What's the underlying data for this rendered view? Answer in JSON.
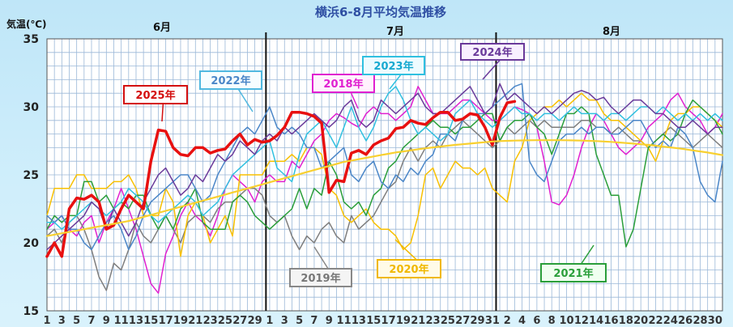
{
  "chart_data": {
    "type": "line",
    "title": "横浜6-8月平均気温推移",
    "ylabel": "気温(℃)",
    "ylim": [
      15,
      35
    ],
    "yticks": [
      "15",
      "20",
      "25",
      "30",
      "35"
    ],
    "month_labels": [
      "6月",
      "7月",
      "8月"
    ],
    "month_lengths": [
      30,
      31,
      31
    ],
    "xticks": [
      "1",
      "3",
      "5",
      "7",
      "9",
      "11",
      "13",
      "15",
      "17",
      "19",
      "21",
      "23",
      "25",
      "27",
      "29",
      "1",
      "3",
      "5",
      "7",
      "9",
      "11",
      "13",
      "15",
      "17",
      "19",
      "21",
      "23",
      "25",
      "27",
      "29",
      "31",
      "2",
      "4",
      "6",
      "8",
      "10",
      "12",
      "14",
      "16",
      "18",
      "20",
      "22",
      "24",
      "26",
      "28",
      "30"
    ],
    "grid": true,
    "series": [
      {
        "name": "2018年",
        "color": "#e020d0",
        "width": 1.5,
        "values": [
          21,
          21.5,
          22,
          21,
          20.5,
          21.5,
          22,
          20,
          21.5,
          22.5,
          24,
          22.5,
          21,
          19,
          17,
          16.3,
          19.2,
          20.5,
          22,
          23,
          22,
          21.5,
          20.5,
          22,
          24,
          25,
          24.5,
          24,
          23,
          24.5,
          25,
          24.5,
          24.5,
          26,
          25.5,
          26.5,
          27.5,
          28,
          29,
          29.5,
          29.2,
          28.8,
          28.5,
          29.5,
          30,
          29.5,
          29.5,
          29,
          29.5,
          30,
          31.5,
          30.5,
          29.5,
          29.5,
          29.5,
          30,
          30.5,
          30.5,
          30,
          29.5,
          29,
          29,
          29.5,
          30,
          29.8,
          29.5,
          28.5,
          26,
          23,
          22.8,
          23.5,
          25,
          27,
          28.5,
          29.5,
          29,
          28,
          27,
          26.5,
          27,
          27.5,
          28.5,
          29,
          29.5,
          30.5,
          31,
          30,
          29.5,
          29,
          28,
          28.5,
          29.5
        ]
      },
      {
        "name": "2019年",
        "color": "#7e7e7e",
        "width": 1.5,
        "values": [
          20.5,
          21,
          20,
          21.5,
          22,
          21,
          19.5,
          17.5,
          16.5,
          18.5,
          18,
          19.5,
          21.5,
          20.5,
          20,
          21,
          22,
          21,
          20,
          21.5,
          22,
          22,
          21.5,
          22.5,
          23,
          23,
          23.5,
          24,
          24,
          23.5,
          22,
          21.5,
          22,
          20.5,
          19.5,
          20.5,
          20,
          21,
          21.5,
          20.5,
          20,
          22,
          21,
          21.5,
          22,
          23,
          24,
          24.5,
          26,
          27,
          26,
          27,
          27.5,
          27,
          28,
          28.5,
          29,
          28.5,
          28,
          27.5,
          27,
          27.5,
          28.5,
          28,
          28.5,
          29,
          28.5,
          29,
          28.5,
          28.5,
          28.5,
          28.5,
          29,
          29,
          28.5,
          28.5,
          28,
          28.5,
          28,
          27.5,
          27.5,
          27,
          27.5,
          28,
          28.5,
          28,
          27.5,
          27,
          27.5,
          28,
          27.5,
          27
        ]
      },
      {
        "name": "2020年",
        "color": "#f8c000",
        "width": 1.5,
        "values": [
          22,
          24,
          24,
          24,
          25,
          25,
          24,
          24,
          24,
          24.5,
          24.5,
          25,
          24,
          22,
          22,
          22,
          24,
          23,
          19,
          22,
          23,
          22,
          20,
          21,
          22,
          20.5,
          25,
          25,
          25,
          25,
          26,
          26,
          26,
          26.5,
          26,
          27,
          27,
          26.5,
          24,
          23.5,
          22,
          21.5,
          22,
          22.5,
          21.5,
          21,
          21,
          20.5,
          19.5,
          20,
          22,
          25,
          25.5,
          24,
          25,
          26,
          25.5,
          25.5,
          25,
          25.5,
          24,
          23.5,
          23,
          26,
          27,
          29,
          29.5,
          30,
          30,
          30.5,
          30,
          30.5,
          31,
          30.5,
          30.5,
          29.5,
          29,
          29,
          28.5,
          28,
          27.5,
          27,
          26,
          27.5,
          29,
          29.5,
          29.5,
          30,
          30,
          29.5,
          29,
          28.5
        ]
      },
      {
        "name": "2021年",
        "color": "#2a9e3a",
        "width": 1.5,
        "values": [
          21,
          22,
          21.5,
          22,
          22,
          24.5,
          24.5,
          23,
          23.5,
          22.5,
          23,
          22.5,
          23.5,
          23.5,
          22,
          21,
          22,
          21,
          22.5,
          23,
          24,
          21.5,
          21,
          21,
          21,
          23,
          23.5,
          23,
          22,
          21.5,
          21,
          21.5,
          22,
          22.5,
          24,
          22.5,
          24,
          23.5,
          26,
          25,
          23,
          22.5,
          23,
          22,
          23.5,
          24,
          25.5,
          26,
          27,
          27.5,
          28,
          28.5,
          29,
          28.5,
          28.5,
          28,
          28.5,
          28.5,
          29,
          29.5,
          29.5,
          27.5,
          28.5,
          29,
          29,
          29.5,
          28.5,
          28,
          26.5,
          28,
          29.5,
          29.5,
          30,
          29.5,
          26.5,
          25,
          23.5,
          23.5,
          19.7,
          21,
          24,
          27,
          27.5,
          28,
          27.5,
          28,
          29.5,
          30.5,
          30,
          29.5,
          29,
          28
        ]
      },
      {
        "name": "2022年",
        "color": "#4a86c8",
        "width": 1.5,
        "values": [
          22,
          21.5,
          22,
          21,
          21,
          20,
          19.5,
          20.5,
          21.5,
          22,
          21,
          19.5,
          20.5,
          22,
          23,
          23.5,
          24,
          24.5,
          25,
          25,
          24,
          23,
          23.5,
          25,
          26,
          27,
          28,
          28.5,
          28,
          29,
          30,
          28.5,
          28,
          28.5,
          28,
          27,
          27,
          25.5,
          26,
          26.5,
          27,
          25,
          24.5,
          25.5,
          26,
          24.5,
          24,
          25,
          24.5,
          25.5,
          25,
          26,
          26.5,
          28,
          28,
          27.5,
          29,
          29.5,
          29.5,
          29.5,
          30,
          30.5,
          31,
          31.5,
          31.7,
          26,
          25,
          24.5,
          26,
          27.5,
          28,
          28,
          28.5,
          28,
          28.5,
          28.5,
          28,
          28,
          28.5,
          29,
          29,
          28,
          27,
          27.5,
          27,
          28.5,
          28,
          27,
          24.5,
          23.5,
          23,
          26
        ]
      },
      {
        "name": "2023年",
        "color": "#30c0e0",
        "width": 1.5,
        "values": [
          21.5,
          21.5,
          21,
          21.5,
          22,
          22.5,
          23,
          22.5,
          22,
          22.5,
          23,
          24,
          23.5,
          23,
          22,
          21.5,
          22,
          22.5,
          23,
          23.5,
          23,
          22,
          22.5,
          23,
          24,
          25,
          25.5,
          26,
          26.5,
          27,
          27.5,
          25.5,
          25,
          24.5,
          26.5,
          28,
          28.5,
          29,
          28,
          27,
          28.5,
          30,
          28.5,
          27.5,
          28.5,
          30,
          31,
          31.5,
          30.5,
          29,
          28,
          28.5,
          28,
          27.5,
          28,
          29.5,
          30,
          30.5,
          29.5,
          29,
          28.5,
          29,
          29.5,
          30,
          29.5,
          29.5,
          29,
          29.5,
          29.5,
          29,
          29.5,
          30,
          29.5,
          29.5,
          29.5,
          29,
          29.5,
          29.5,
          29,
          29.5,
          30,
          30,
          29.5,
          30,
          29.5,
          29,
          29.5,
          29,
          29.5,
          29,
          29.5,
          29
        ]
      },
      {
        "name": "2024年",
        "color": "#6a3a9a",
        "width": 1.5,
        "values": [
          19.5,
          20,
          20.5,
          21,
          21.5,
          22,
          23,
          22.5,
          21,
          22.5,
          21.5,
          20.5,
          21.5,
          23,
          24,
          25,
          25.5,
          24.5,
          23.5,
          24,
          25,
          24.5,
          25.5,
          26.5,
          26,
          26.5,
          27.5,
          27,
          26.5,
          27.5,
          28,
          27.5,
          28.5,
          28,
          28.5,
          29,
          29.5,
          29,
          28.5,
          29,
          30,
          30.5,
          29,
          28.5,
          29,
          30.5,
          30,
          29.5,
          30,
          30.5,
          31,
          30,
          29.5,
          29.5,
          30,
          30.5,
          31,
          31.5,
          30.5,
          29.5,
          30,
          31.7,
          30.5,
          31,
          30.5,
          30,
          29.5,
          30,
          29.5,
          30,
          30.5,
          31,
          31.2,
          31,
          30.5,
          30.7,
          30,
          29.5,
          30,
          30.5,
          30.5,
          30,
          29.5,
          29.5,
          29,
          28.5,
          28.5,
          29,
          28.5,
          28,
          28.5,
          28.5
        ]
      },
      {
        "name": "2025年",
        "color": "#e81010",
        "width": 3.5,
        "values": [
          19,
          20,
          19,
          22.5,
          23.3,
          23.2,
          23.5,
          23,
          21,
          21.3,
          22.5,
          23.5,
          23,
          22.5,
          26,
          28.3,
          28.2,
          27,
          26.5,
          26.4,
          27,
          27,
          26.6,
          26.8,
          26.9,
          27.5,
          28,
          27.2,
          27.6,
          27.4,
          27.5,
          27.9,
          28.5,
          29.6,
          29.6,
          29.5,
          29.3,
          28.8,
          23.7,
          24.6,
          24.5,
          26.6,
          26.8,
          26.5,
          27.2,
          27.5,
          27.7,
          28.4,
          28.5,
          29,
          28.8,
          28.7,
          29.2,
          29.6,
          29.6,
          29,
          29.1,
          29.5,
          29.4,
          28.5,
          27.2,
          29.2,
          30.3,
          30.4
        ]
      },
      {
        "name": "",
        "color": "#f8d030",
        "width": 2.2,
        "values": [
          20.5,
          20.6,
          20.7,
          20.8,
          20.9,
          21.0,
          21.1,
          21.2,
          21.3,
          21.4,
          21.5,
          21.6,
          21.75,
          21.9,
          22.05,
          22.2,
          22.35,
          22.5,
          22.65,
          22.8,
          22.95,
          23.1,
          23.25,
          23.4,
          23.55,
          23.7,
          23.85,
          24.0,
          24.15,
          24.3,
          24.45,
          24.6,
          24.75,
          24.9,
          25.05,
          25.2,
          25.35,
          25.5,
          25.65,
          25.8,
          25.95,
          26.05,
          26.15,
          26.25,
          26.35,
          26.45,
          26.55,
          26.65,
          26.72,
          26.8,
          26.88,
          26.95,
          27.02,
          27.08,
          27.14,
          27.2,
          27.25,
          27.3,
          27.35,
          27.4,
          27.45,
          27.48,
          27.5,
          27.52,
          27.53,
          27.54,
          27.55,
          27.55,
          27.55,
          27.55,
          27.54,
          27.53,
          27.52,
          27.5,
          27.48,
          27.45,
          27.42,
          27.38,
          27.34,
          27.3,
          27.25,
          27.2,
          27.14,
          27.08,
          27.02,
          26.95,
          26.88,
          26.8,
          26.72,
          26.64,
          26.55,
          26.45
        ]
      }
    ],
    "legend_labels": [
      {
        "text": "2025年",
        "series": "2025年",
        "color": "#d40f0f",
        "border": "#d40f0f",
        "bg": "#ffffff"
      },
      {
        "text": "2022年",
        "series": "2022年",
        "color": "#4a86c8",
        "border": "#50b8e0",
        "bg": "#f6fdff"
      },
      {
        "text": "2018年",
        "series": "2018年",
        "color": "#e020d0",
        "border": "#e020d0",
        "bg": "#fff2fd"
      },
      {
        "text": "2023年",
        "series": "2023年",
        "color": "#18a9d0",
        "border": "#30c0e0",
        "bg": "#eefbff"
      },
      {
        "text": "2024年",
        "series": "2024年",
        "color": "#6a3a9a",
        "border": "#6a3a9a",
        "bg": "#f8f0ff"
      },
      {
        "text": "2019年",
        "series": "2019年",
        "color": "#777777",
        "border": "#888888",
        "bg": "#f4f4f4"
      },
      {
        "text": "2020年",
        "series": "2020年",
        "color": "#f0b800",
        "border": "#f0b800",
        "bg": "#fffbe8"
      },
      {
        "text": "2021年",
        "series": "2021年",
        "color": "#2a9e3a",
        "border": "#2a9e3a",
        "bg": "#f0fff0"
      }
    ]
  }
}
